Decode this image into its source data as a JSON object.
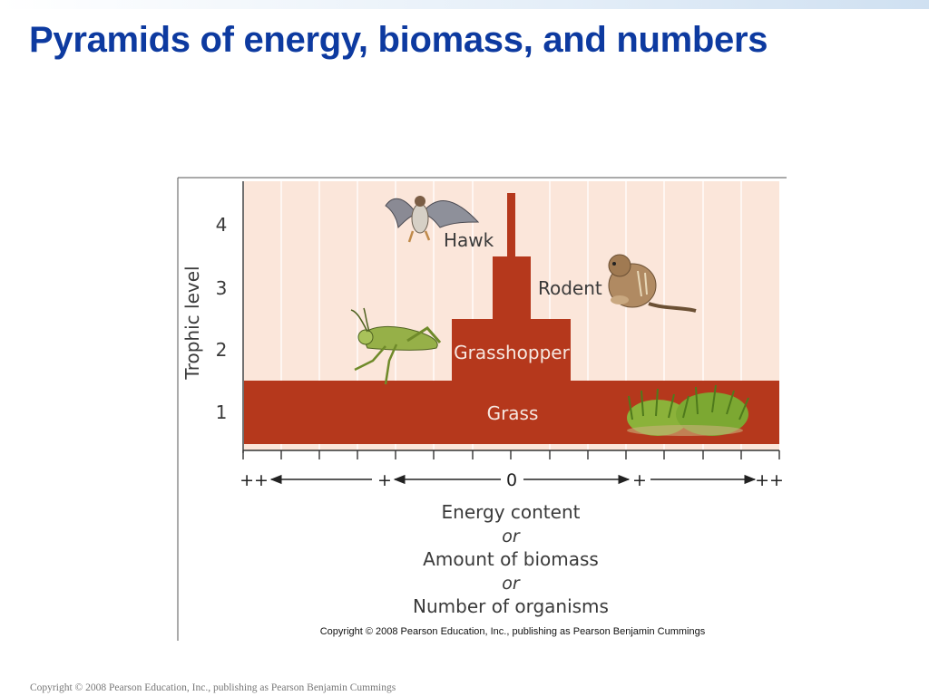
{
  "slide": {
    "title": "Pyramids of energy, biomass, and numbers",
    "footer": "Copyright © 2008 Pearson Education, Inc., publishing as Pearson Benjamin Cummings"
  },
  "figure": {
    "y_axis_label": "Trophic level",
    "level_numbers": [
      "4",
      "3",
      "2",
      "1"
    ],
    "bars": [
      {
        "label": "Grass",
        "level": 1
      },
      {
        "label": "Grasshopper",
        "level": 2
      },
      {
        "label": "Rodent",
        "level": 3
      },
      {
        "label": "Hawk",
        "level": 4
      }
    ],
    "scale_marks": {
      "far_left": "++",
      "left": "+",
      "center": "0",
      "right": "+",
      "far_right": "++"
    },
    "x_axis_lines": [
      "Energy content",
      "or",
      "Amount of biomass",
      "or",
      "Number of organisms"
    ],
    "credit": "Copyright © 2008 Pearson Education, Inc., publishing as Pearson Benjamin Cummings",
    "colors": {
      "bar": "#b5381c",
      "panel": "#fbe6da",
      "title": "#0d3aa0"
    },
    "icons": [
      "hawk-icon",
      "rodent-icon",
      "grasshopper-icon",
      "grass-icon"
    ]
  }
}
